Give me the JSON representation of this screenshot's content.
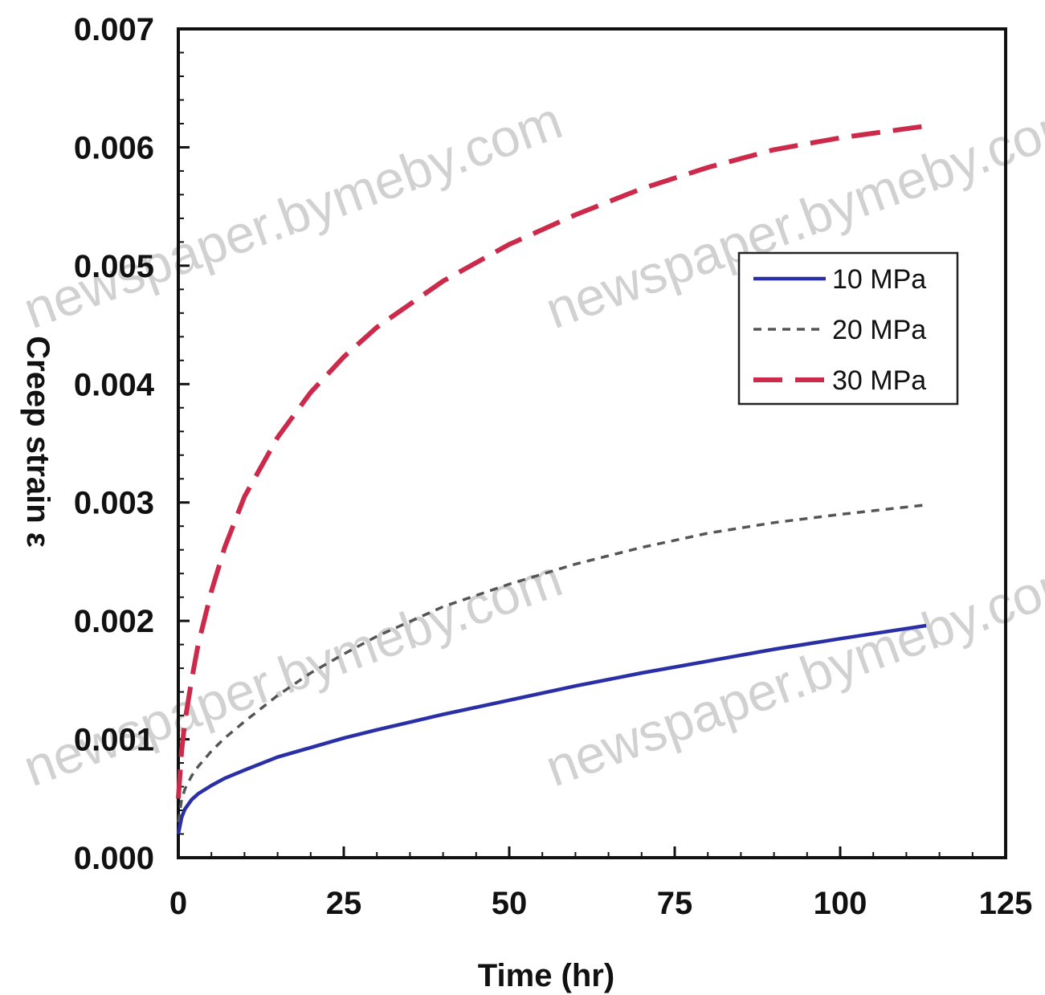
{
  "chart_data": {
    "type": "line",
    "title": "",
    "xlabel": "Time (hr)",
    "ylabel": "Creep strain ε",
    "xlim": [
      0,
      125
    ],
    "ylim": [
      0,
      0.007
    ],
    "x_ticks": [
      "0",
      "25",
      "50",
      "75",
      "100",
      "125"
    ],
    "y_ticks": [
      "0.000",
      "0.001",
      "0.002",
      "0.003",
      "0.004",
      "0.005",
      "0.006",
      "0.007"
    ],
    "grid": false,
    "legend_position": "upper-right",
    "series": [
      {
        "name": "10 MPa",
        "color": "#2a2fa6",
        "style": "solid",
        "x": [
          0,
          0.5,
          1,
          2,
          3,
          5,
          7,
          10,
          15,
          20,
          25,
          30,
          40,
          50,
          60,
          70,
          80,
          90,
          100,
          113
        ],
        "y": [
          0.0002,
          0.00034,
          0.00041,
          0.00049,
          0.00054,
          0.00061,
          0.00067,
          0.00074,
          0.00085,
          0.00093,
          0.00101,
          0.00108,
          0.00121,
          0.00133,
          0.00145,
          0.00156,
          0.00166,
          0.00176,
          0.00185,
          0.00196
        ]
      },
      {
        "name": "20 MPa",
        "color": "#555555",
        "style": "dotted",
        "x": [
          0,
          0.5,
          1,
          2,
          3,
          5,
          7,
          10,
          15,
          20,
          25,
          30,
          40,
          50,
          60,
          70,
          80,
          90,
          100,
          113
        ],
        "y": [
          0.0003,
          0.00049,
          0.00058,
          0.00069,
          0.00077,
          0.0009,
          0.00101,
          0.00115,
          0.00137,
          0.00156,
          0.00172,
          0.00187,
          0.00212,
          0.00231,
          0.00248,
          0.00262,
          0.00274,
          0.00283,
          0.0029,
          0.00298
        ]
      },
      {
        "name": "30 MPa",
        "color": "#cc2a4a",
        "style": "dashed",
        "x": [
          0,
          0.5,
          1,
          2,
          3,
          5,
          7,
          10,
          15,
          20,
          25,
          30,
          40,
          50,
          60,
          70,
          80,
          90,
          100,
          113
        ],
        "y": [
          0.0005,
          0.0009,
          0.00115,
          0.0015,
          0.0018,
          0.00225,
          0.00262,
          0.00305,
          0.00355,
          0.00393,
          0.00423,
          0.00448,
          0.00487,
          0.00518,
          0.00543,
          0.00565,
          0.00583,
          0.00598,
          0.00608,
          0.00618
        ]
      }
    ]
  },
  "watermarks": [
    "newspaper.bymeby.com",
    "newspaper.bymeby.com",
    "newspaper.bymeby.com",
    "newspaper.bymeby.com"
  ]
}
